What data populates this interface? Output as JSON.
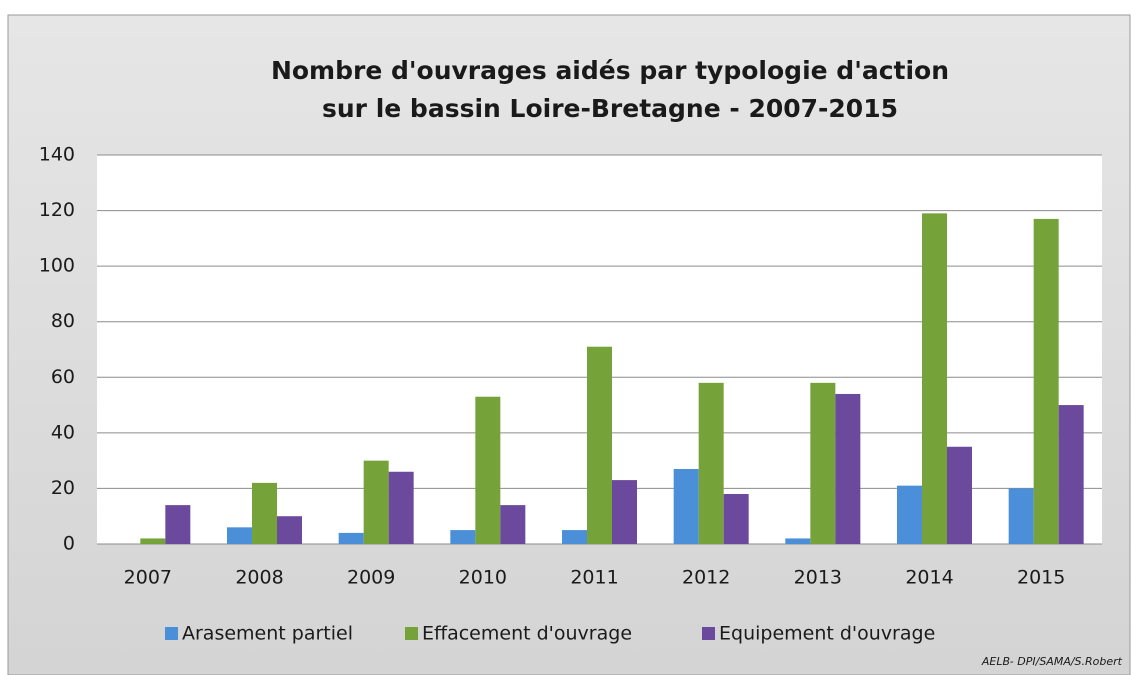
{
  "chart_data": {
    "type": "bar",
    "title": [
      "Nombre d'ouvrages aidés par typologie d'action",
      "sur le bassin Loire-Bretagne - 2007-2015"
    ],
    "categories": [
      "2007",
      "2008",
      "2009",
      "2010",
      "2011",
      "2012",
      "2013",
      "2014",
      "2015"
    ],
    "series": [
      {
        "name": "Arasement partiel",
        "color": "#4a8fd8",
        "values": [
          0,
          6,
          4,
          5,
          5,
          27,
          2,
          21,
          20
        ]
      },
      {
        "name": "Effacement d'ouvrage",
        "color": "#76a23a",
        "values": [
          2,
          22,
          30,
          53,
          71,
          58,
          58,
          119,
          117
        ]
      },
      {
        "name": "Equipement d'ouvrage",
        "color": "#6b4a9e",
        "values": [
          14,
          10,
          26,
          14,
          23,
          18,
          54,
          35,
          50
        ]
      }
    ],
    "ylim": [
      0,
      140
    ],
    "yticks": [
      0,
      20,
      40,
      60,
      80,
      100,
      120,
      140
    ],
    "grid": true,
    "legend": "bottom",
    "source": "AELB-  DPI/SAMA/S.Robert"
  }
}
